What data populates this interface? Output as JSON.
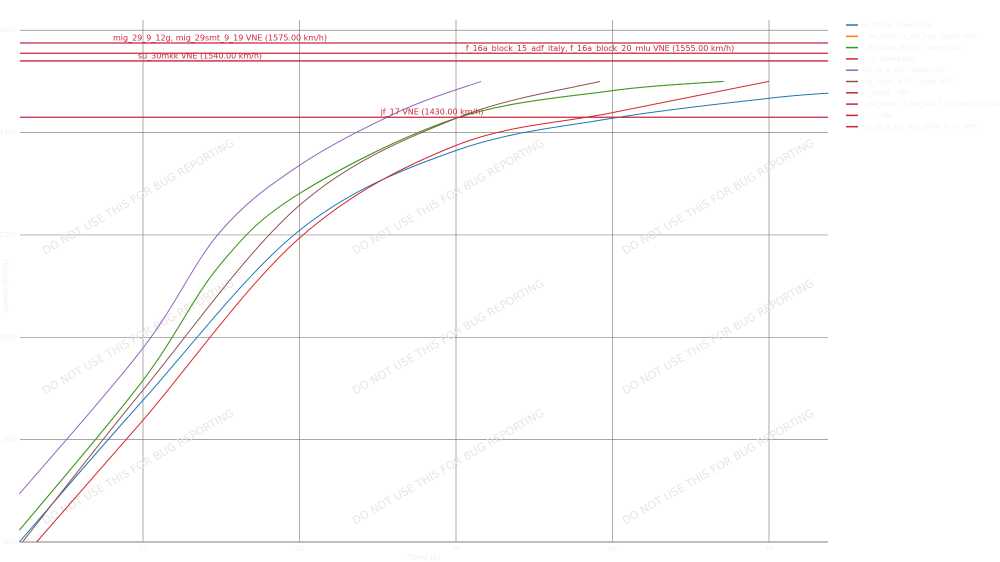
{
  "chart_data": {
    "type": "line",
    "xlabel": "Time (s)",
    "ylabel": "Speed (km/h)",
    "xlim": [
      2.14,
      53.77
    ],
    "ylim": [
      600,
      1620
    ],
    "grid": true,
    "legend_position": "right",
    "x_ticks": [
      "10",
      "20",
      "30",
      "40",
      "50"
    ],
    "y_ticks": [
      "600",
      "800",
      "1000",
      "1200",
      "1400",
      "1600"
    ],
    "series": [
      {
        "name": "su_30mkk - Speed (IAS)",
        "color": "#1f77b4",
        "x": [
          2.1,
          10,
          20,
          30,
          40,
          50,
          53.8
        ],
        "y": [
          600,
          877,
          1209,
          1365,
          1428,
          1467,
          1477
        ]
      },
      {
        "name": "f_16a_block_15_adf_italy - Speed (IAS)",
        "color": "#ff7f0e",
        "x": [
          2.1,
          10,
          14.9,
          20,
          30,
          40,
          47.1
        ],
        "y": [
          623,
          916,
          1141,
          1281,
          1428,
          1482,
          1500
        ]
      },
      {
        "name": "f_16a_block_20_mlu - Speed (IAS)",
        "color": "#2ca02c",
        "x": [
          2.1,
          10,
          14.9,
          20,
          30,
          40,
          47.1
        ],
        "y": [
          623,
          916,
          1141,
          1281,
          1428,
          1482,
          1500
        ]
      },
      {
        "name": "jf_17 - Speed (IAS)",
        "color": "#d62728",
        "x": [
          3.2,
          10,
          20,
          30,
          40,
          50
        ],
        "y": [
          600,
          838,
          1194,
          1375,
          1439,
          1500
        ]
      },
      {
        "name": "mig_29_9_12g - Speed (IAS)",
        "color": "#9467bd",
        "x": [
          2.1,
          10,
          14.9,
          20,
          26.5,
          31.6
        ],
        "y": [
          694,
          979,
          1205,
          1336,
          1443,
          1500
        ]
      },
      {
        "name": "mig_29smt_9_19 - Speed (IAS)",
        "color": "#8c564b",
        "x": [
          2.3,
          10,
          20,
          30,
          39.2
        ],
        "y": [
          600,
          897,
          1258,
          1428,
          1500
        ]
      }
    ],
    "reference_lines": [
      {
        "name": "su_30mkk - VNE",
        "label": "su_30mkk VNE (1540.00 km/h)",
        "value": 1540,
        "color": "#c8283c"
      },
      {
        "name": "f_16a_block_15_adf_italy, f_16a_block_20_mlu - VNE",
        "label": "f_16a_block_15_adf_italy, f_16a_block_20_mlu VNE (1555.00 km/h)",
        "value": 1555,
        "color": "#c8283c"
      },
      {
        "name": "jf_17 - VNE",
        "label": "jf_17 VNE (1430.00 km/h)",
        "value": 1430,
        "color": "#c8283c"
      },
      {
        "name": "mig_29_9_12g, mig_29smt_9_19 - VNE",
        "label": "mig_29_9_12g, mig_29smt_9_19 VNE (1575.00 km/h)",
        "value": 1575,
        "color": "#c8283c"
      }
    ]
  },
  "watermark": "DO NOT USE THIS FOR BUG REPORTING"
}
